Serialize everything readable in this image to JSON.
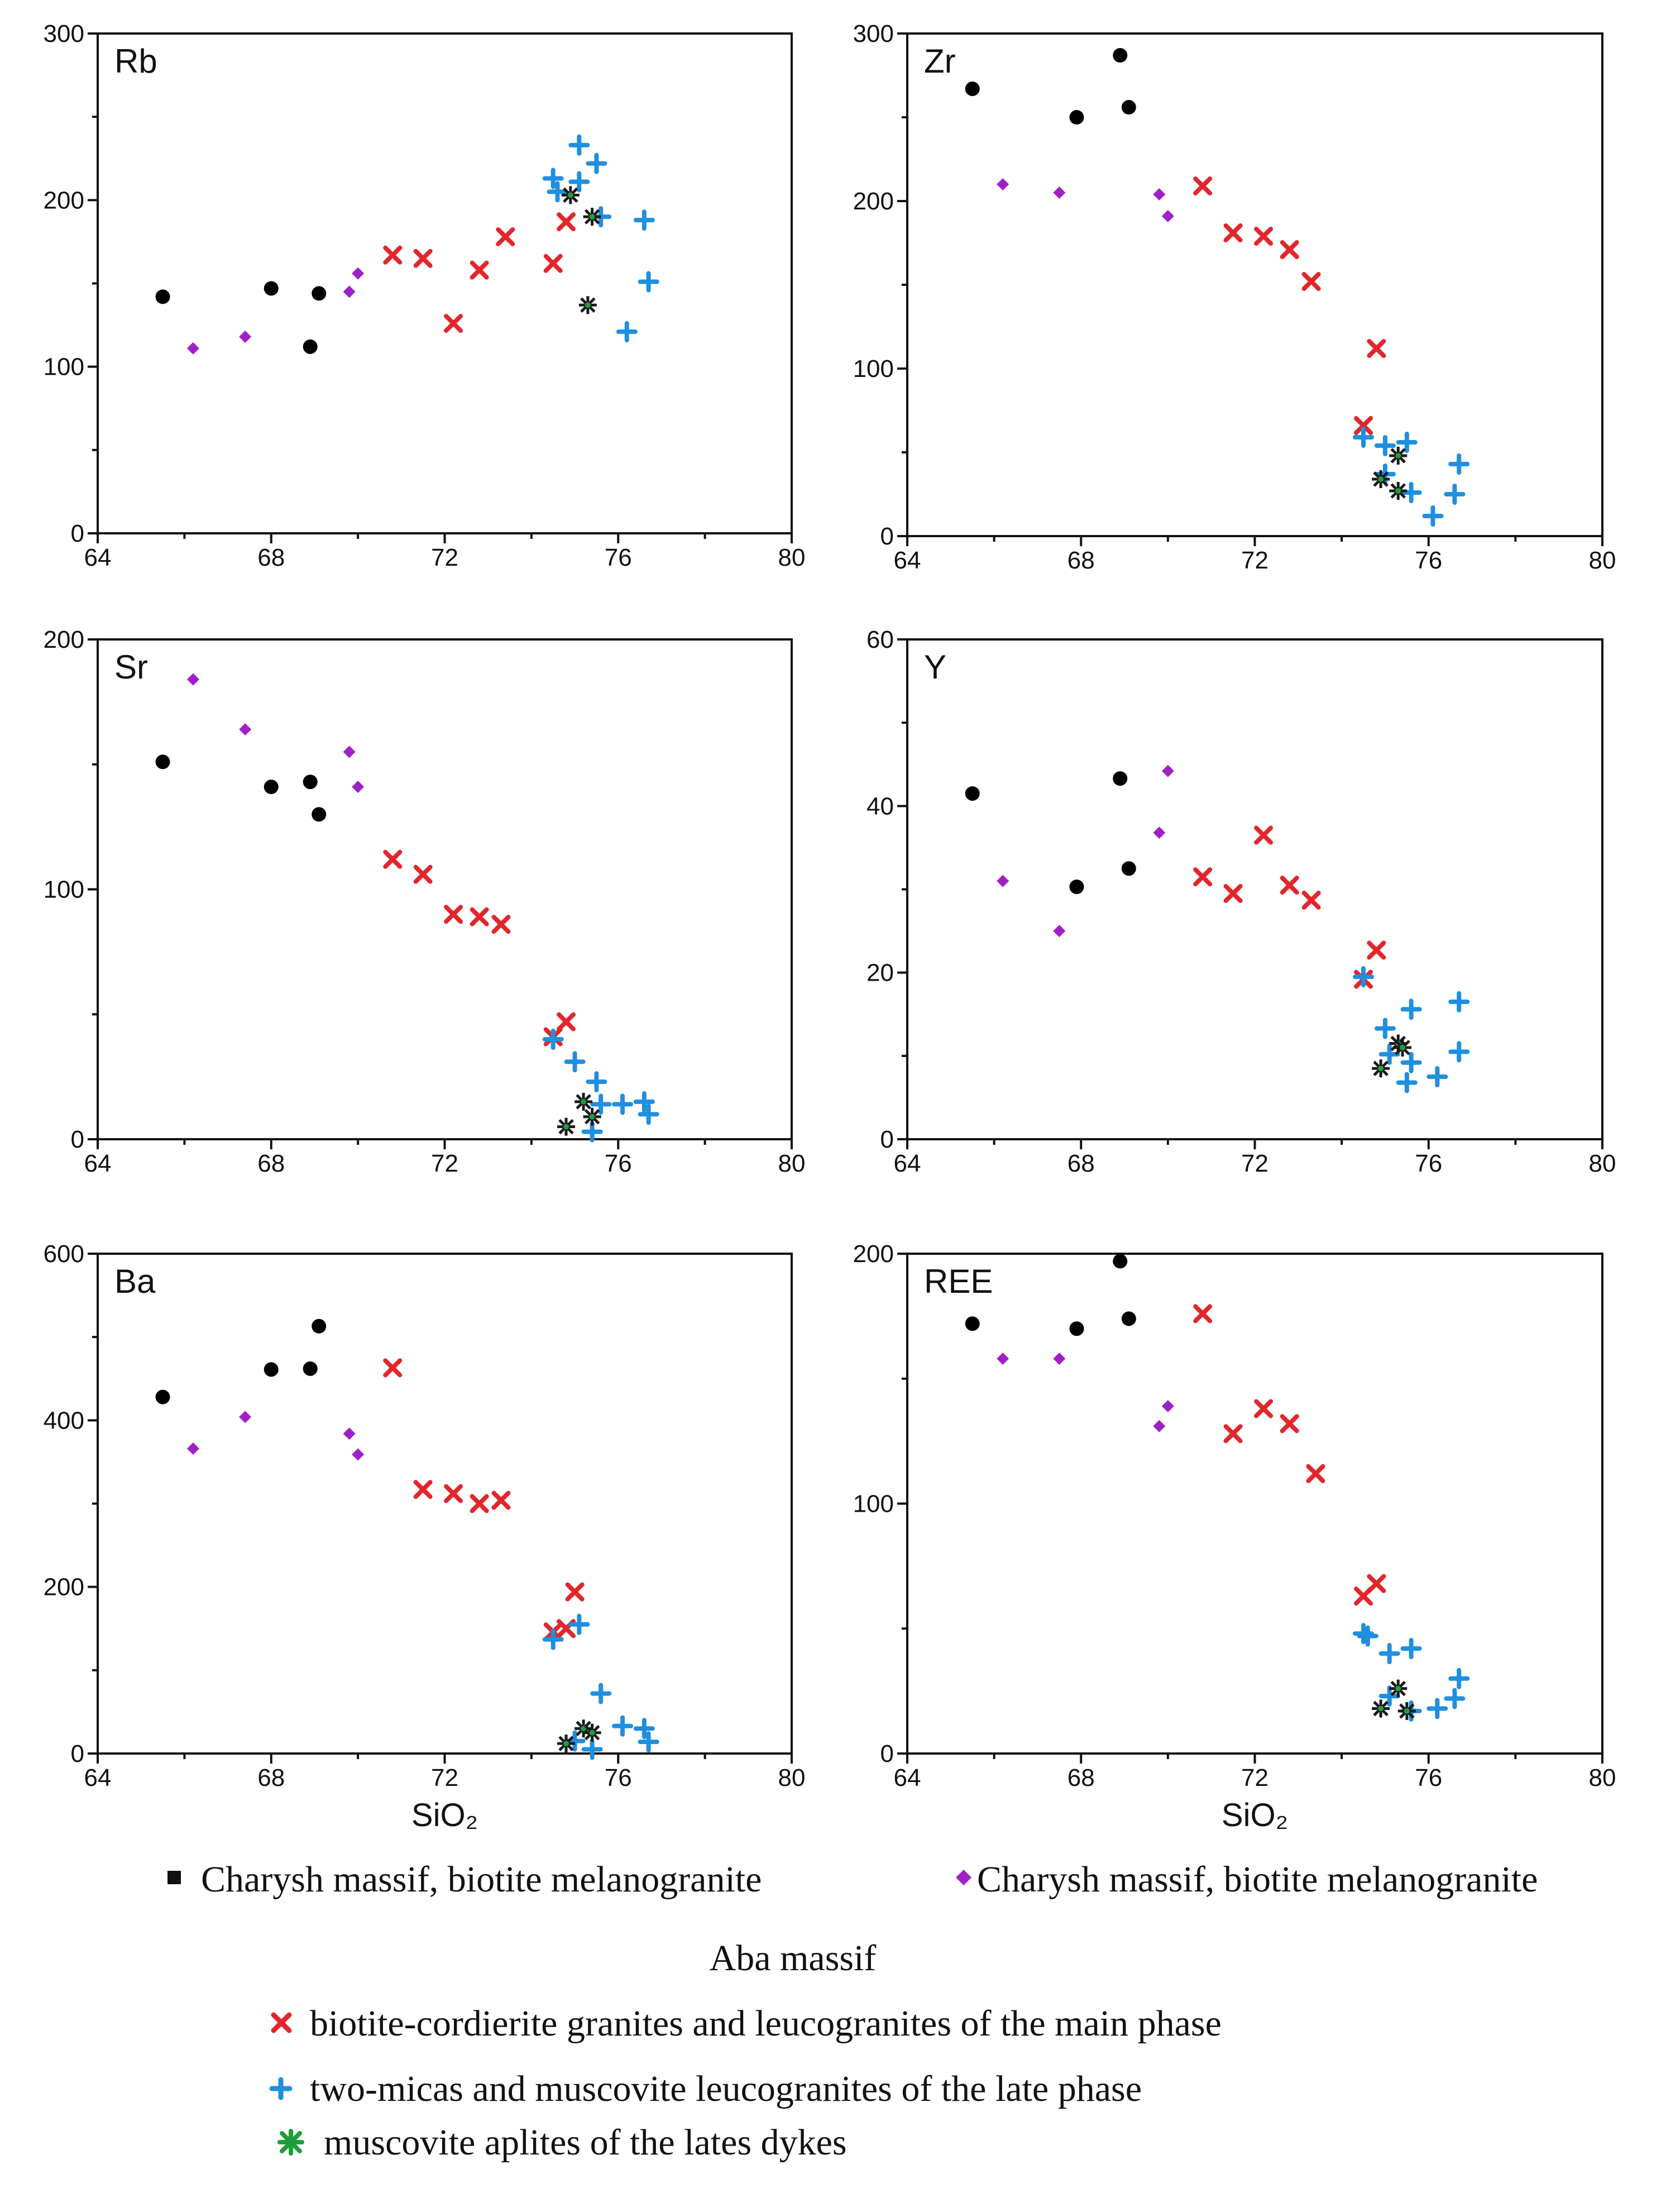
{
  "chart_data": [
    {
      "type": "scatter",
      "panel": "Rb",
      "x_ticks": [
        64,
        68,
        72,
        76,
        80
      ],
      "y_ticks": [
        0,
        100,
        200,
        300
      ],
      "xlim": [
        64,
        80
      ],
      "ylim": [
        0,
        300
      ],
      "xlabel": "",
      "series": [
        {
          "key": "charysh",
          "points": [
            [
              65.5,
              142
            ],
            [
              68.0,
              147
            ],
            [
              68.9,
              112
            ],
            [
              69.1,
              144
            ]
          ]
        },
        {
          "key": "charysh2",
          "points": [
            [
              66.2,
              111
            ],
            [
              67.4,
              118
            ],
            [
              69.8,
              145
            ],
            [
              70.0,
              156
            ]
          ]
        },
        {
          "key": "aba_main",
          "points": [
            [
              70.8,
              167
            ],
            [
              71.5,
              165
            ],
            [
              72.2,
              126
            ],
            [
              72.8,
              158
            ],
            [
              73.4,
              178
            ],
            [
              74.5,
              162
            ],
            [
              74.8,
              187
            ]
          ]
        },
        {
          "key": "aba_late",
          "points": [
            [
              74.5,
              213
            ],
            [
              74.6,
              205
            ],
            [
              75.1,
              233
            ],
            [
              75.1,
              211
            ],
            [
              75.5,
              222
            ],
            [
              75.6,
              190
            ],
            [
              76.2,
              121
            ],
            [
              76.6,
              188
            ],
            [
              76.7,
              151
            ]
          ]
        },
        {
          "key": "aba_dykes",
          "points": [
            [
              74.9,
              203
            ],
            [
              75.4,
              190
            ],
            [
              75.3,
              137
            ]
          ]
        }
      ]
    },
    {
      "type": "scatter",
      "panel": "Zr",
      "x_ticks": [
        64,
        68,
        72,
        76,
        80
      ],
      "y_ticks": [
        0,
        100,
        200,
        300
      ],
      "xlim": [
        64,
        80
      ],
      "ylim": [
        0,
        300
      ],
      "xlabel": "",
      "series": [
        {
          "key": "charysh",
          "points": [
            [
              65.5,
              267
            ],
            [
              67.9,
              250
            ],
            [
              68.9,
              287
            ],
            [
              69.1,
              256
            ]
          ]
        },
        {
          "key": "charysh2",
          "points": [
            [
              66.2,
              210
            ],
            [
              67.5,
              205
            ],
            [
              69.8,
              204
            ],
            [
              70.0,
              191
            ]
          ]
        },
        {
          "key": "aba_main",
          "points": [
            [
              70.8,
              209
            ],
            [
              71.5,
              181
            ],
            [
              72.2,
              179
            ],
            [
              72.8,
              171
            ],
            [
              73.3,
              152
            ],
            [
              74.5,
              66
            ],
            [
              74.8,
              112
            ]
          ]
        },
        {
          "key": "aba_late",
          "points": [
            [
              74.5,
              59
            ],
            [
              75.0,
              54
            ],
            [
              75.0,
              37
            ],
            [
              75.5,
              56
            ],
            [
              75.6,
              26
            ],
            [
              76.1,
              12
            ],
            [
              76.6,
              25
            ],
            [
              76.7,
              43
            ]
          ]
        },
        {
          "key": "aba_dykes",
          "points": [
            [
              74.9,
              34
            ],
            [
              75.3,
              27
            ],
            [
              75.3,
              48
            ]
          ]
        }
      ]
    },
    {
      "type": "scatter",
      "panel": "Sr",
      "x_ticks": [
        64,
        68,
        72,
        76,
        80
      ],
      "y_ticks": [
        0,
        100,
        200
      ],
      "xlim": [
        64,
        80
      ],
      "ylim": [
        0,
        200
      ],
      "xlabel": "",
      "series": [
        {
          "key": "charysh",
          "points": [
            [
              65.5,
              151
            ],
            [
              68.0,
              141
            ],
            [
              68.9,
              143
            ],
            [
              69.1,
              130
            ]
          ]
        },
        {
          "key": "charysh2",
          "points": [
            [
              66.2,
              184
            ],
            [
              67.4,
              164
            ],
            [
              69.8,
              155
            ],
            [
              70.0,
              141
            ]
          ]
        },
        {
          "key": "aba_main",
          "points": [
            [
              70.8,
              112
            ],
            [
              71.5,
              106
            ],
            [
              72.2,
              90
            ],
            [
              72.8,
              89
            ],
            [
              73.3,
              86
            ],
            [
              74.5,
              41
            ],
            [
              74.8,
              47
            ]
          ]
        },
        {
          "key": "aba_late",
          "points": [
            [
              74.5,
              40
            ],
            [
              75.0,
              31
            ],
            [
              75.5,
              23
            ],
            [
              75.6,
              14
            ],
            [
              76.1,
              14
            ],
            [
              76.6,
              15
            ],
            [
              76.7,
              10
            ],
            [
              75.4,
              3
            ]
          ]
        },
        {
          "key": "aba_dykes",
          "points": [
            [
              74.8,
              5
            ],
            [
              75.2,
              15
            ],
            [
              75.4,
              9
            ]
          ]
        }
      ]
    },
    {
      "type": "scatter",
      "panel": "Y",
      "x_ticks": [
        64,
        68,
        72,
        76,
        80
      ],
      "y_ticks": [
        0,
        20,
        40,
        60
      ],
      "xlim": [
        64,
        80
      ],
      "ylim": [
        0,
        60
      ],
      "xlabel": "",
      "series": [
        {
          "key": "charysh",
          "points": [
            [
              65.5,
              41.5
            ],
            [
              67.9,
              30.3
            ],
            [
              68.9,
              43.3
            ],
            [
              69.1,
              32.5
            ]
          ]
        },
        {
          "key": "charysh2",
          "points": [
            [
              66.2,
              31
            ],
            [
              67.5,
              25
            ],
            [
              69.8,
              36.8
            ],
            [
              70.0,
              44.2
            ]
          ]
        },
        {
          "key": "aba_main",
          "points": [
            [
              70.8,
              31.5
            ],
            [
              71.5,
              29.5
            ],
            [
              72.2,
              36.5
            ],
            [
              72.8,
              30.5
            ],
            [
              73.3,
              28.7
            ],
            [
              74.5,
              19.2
            ],
            [
              74.8,
              22.7
            ]
          ]
        },
        {
          "key": "aba_late",
          "points": [
            [
              74.5,
              19.5
            ],
            [
              75.0,
              13.3
            ],
            [
              75.1,
              10.2
            ],
            [
              75.6,
              15.6
            ],
            [
              75.6,
              9.2
            ],
            [
              75.5,
              6.8
            ],
            [
              76.2,
              7.5
            ],
            [
              76.7,
              10.5
            ],
            [
              76.7,
              16.5
            ]
          ]
        },
        {
          "key": "aba_dykes",
          "points": [
            [
              74.9,
              8.5
            ],
            [
              75.3,
              11.5
            ],
            [
              75.4,
              11.0
            ]
          ]
        }
      ]
    },
    {
      "type": "scatter",
      "panel": "Ba",
      "x_ticks": [
        64,
        68,
        72,
        76,
        80
      ],
      "y_ticks": [
        0,
        200,
        400,
        600
      ],
      "xlim": [
        64,
        80
      ],
      "ylim": [
        0,
        600
      ],
      "xlabel": "SiO₂",
      "series": [
        {
          "key": "charysh",
          "points": [
            [
              65.5,
              428
            ],
            [
              68.0,
              461
            ],
            [
              68.9,
              462
            ],
            [
              69.1,
              513
            ]
          ]
        },
        {
          "key": "charysh2",
          "points": [
            [
              66.2,
              366
            ],
            [
              67.4,
              404
            ],
            [
              69.8,
              384
            ],
            [
              70.0,
              359
            ]
          ]
        },
        {
          "key": "aba_main",
          "points": [
            [
              70.8,
              463
            ],
            [
              71.5,
              317
            ],
            [
              72.2,
              312
            ],
            [
              72.8,
              300
            ],
            [
              73.3,
              304
            ],
            [
              74.5,
              146
            ],
            [
              74.8,
              150
            ],
            [
              75.0,
              194
            ]
          ]
        },
        {
          "key": "aba_late",
          "points": [
            [
              74.5,
              137
            ],
            [
              75.1,
              155
            ],
            [
              75.6,
              72
            ],
            [
              76.1,
              33
            ],
            [
              76.6,
              30
            ],
            [
              76.7,
              14
            ],
            [
              75.4,
              5
            ],
            [
              75.0,
              15
            ]
          ]
        },
        {
          "key": "aba_dykes",
          "points": [
            [
              74.8,
              12
            ],
            [
              75.2,
              30
            ],
            [
              75.4,
              25
            ]
          ]
        }
      ]
    },
    {
      "type": "scatter",
      "panel": "REE",
      "x_ticks": [
        64,
        68,
        72,
        76,
        80
      ],
      "y_ticks": [
        0,
        100,
        200
      ],
      "xlim": [
        64,
        80
      ],
      "ylim": [
        0,
        200
      ],
      "xlabel": "SiO₂",
      "series": [
        {
          "key": "charysh",
          "points": [
            [
              65.5,
              172
            ],
            [
              67.9,
              170
            ],
            [
              68.9,
              197
            ],
            [
              69.1,
              174
            ]
          ]
        },
        {
          "key": "charysh2",
          "points": [
            [
              66.2,
              158
            ],
            [
              67.5,
              158
            ],
            [
              69.8,
              131
            ],
            [
              70.0,
              139
            ]
          ]
        },
        {
          "key": "aba_main",
          "points": [
            [
              70.8,
              176
            ],
            [
              71.5,
              128
            ],
            [
              72.2,
              138
            ],
            [
              72.8,
              132
            ],
            [
              73.4,
              112
            ],
            [
              74.5,
              63
            ],
            [
              74.8,
              68
            ]
          ]
        },
        {
          "key": "aba_late",
          "points": [
            [
              74.5,
              48
            ],
            [
              74.6,
              47
            ],
            [
              75.1,
              40
            ],
            [
              75.6,
              42
            ],
            [
              75.1,
              23
            ],
            [
              75.6,
              17
            ],
            [
              76.2,
              18
            ],
            [
              76.6,
              22
            ],
            [
              76.7,
              30
            ]
          ]
        },
        {
          "key": "aba_dykes",
          "points": [
            [
              74.9,
              18
            ],
            [
              75.3,
              26
            ],
            [
              75.5,
              17
            ]
          ]
        }
      ]
    }
  ],
  "legend": {
    "charysh_black": "Charysh massif, biotite melanogranite",
    "charysh_purple": "Charysh massif, biotite melanogranite",
    "aba_heading": "Aba massif",
    "aba_main": "biotite-cordierite granites and leucogranites of the main phase",
    "aba_late": "two-micas and muscovite leucogranites of the late phase",
    "aba_dykes": "muscovite aplites of the lates dykes"
  },
  "colors": {
    "charysh": "#000000",
    "charysh2": "#a020c8",
    "aba_main": "#e3262c",
    "aba_late": "#1f8fe0",
    "aba_dykes": "#1a1a1a",
    "aba_dykes_legend": "#1e9e3a"
  }
}
